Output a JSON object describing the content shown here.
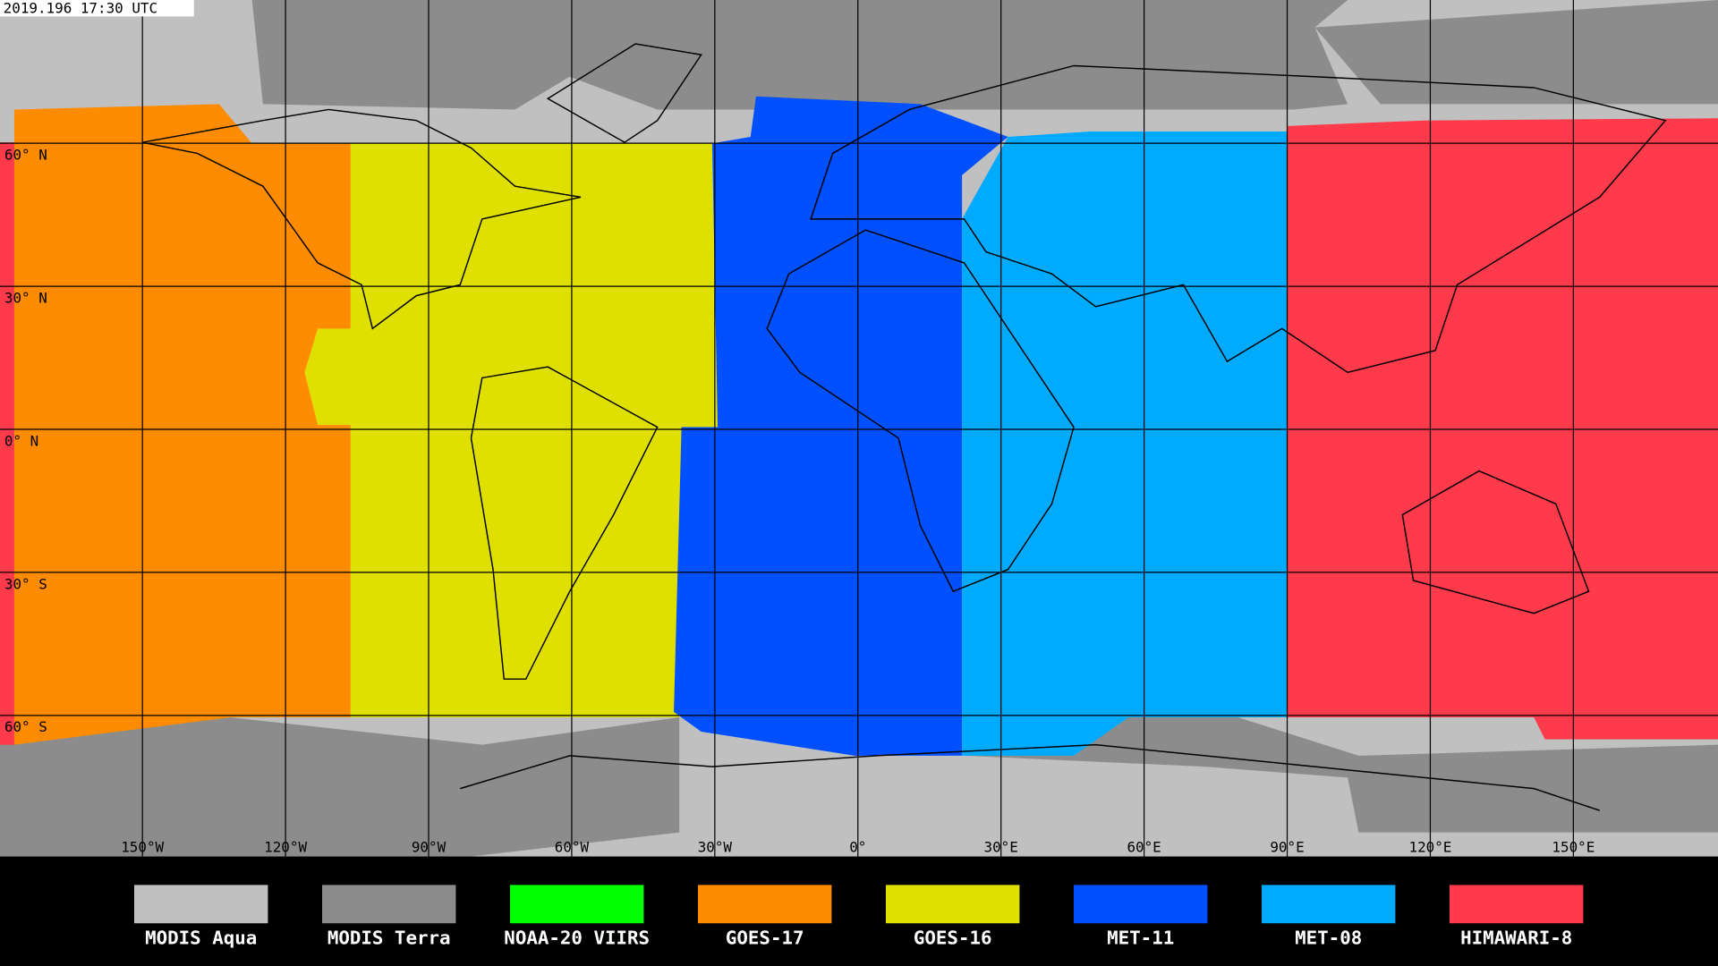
{
  "timestamp": "2019.196 17:30 UTC",
  "lat_labels": [
    "60° N",
    "30° N",
    "0° N",
    "30° S",
    "60° S"
  ],
  "lon_labels": [
    "150°W",
    "120°W",
    "90°W",
    "60°W",
    "30°W",
    "0°",
    "30°E",
    "60°E",
    "90°E",
    "120°E",
    "150°E"
  ],
  "legend": [
    {
      "name": "MODIS Aqua",
      "color": "#c0c0c0"
    },
    {
      "name": "MODIS Terra",
      "color": "#8c8c8c"
    },
    {
      "name": "NOAA-20 VIIRS",
      "color": "#00ff00"
    },
    {
      "name": "GOES-17",
      "color": "#ff8c00"
    },
    {
      "name": "GOES-16",
      "color": "#e0e000"
    },
    {
      "name": "MET-11",
      "color": "#0050ff"
    },
    {
      "name": "MET-08",
      "color": "#00aaff"
    },
    {
      "name": "HIMAWARI-8",
      "color": "#ff3a4a"
    }
  ]
}
